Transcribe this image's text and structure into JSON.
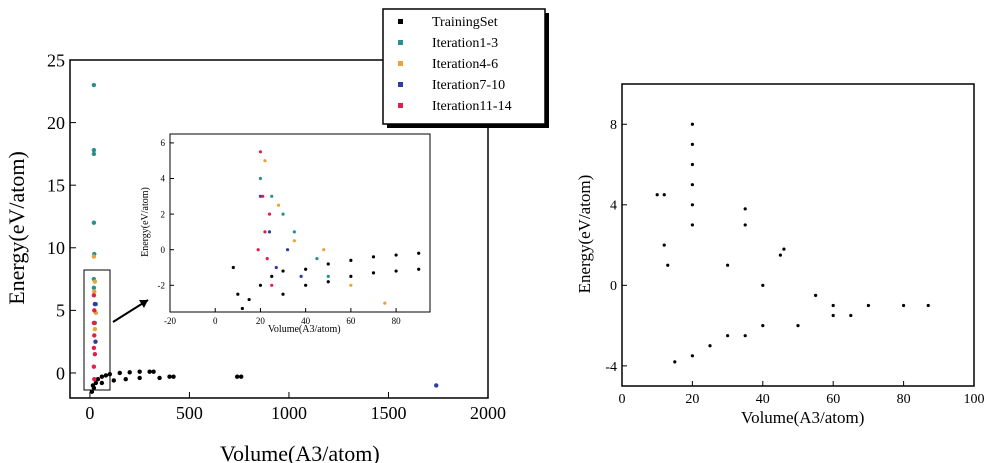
{
  "chart_data": [
    {
      "type": "scatter",
      "xlabel": "Volume(A3/atom)",
      "ylabel": "Energy(eV/atom)",
      "xlim": [
        -100,
        2000
      ],
      "ylim": [
        -2,
        25
      ],
      "xticks": [
        0,
        500,
        1000,
        1500,
        2000
      ],
      "yticks": [
        0,
        5,
        10,
        15,
        20,
        25
      ],
      "legend": {
        "placement": "top-right",
        "entries": [
          {
            "name": "TrainingSet",
            "color": "#000000"
          },
          {
            "name": "Iteration1-3",
            "color": "#2a8f8f"
          },
          {
            "name": "Iteration4-6",
            "color": "#e8a33a"
          },
          {
            "name": "Iteration7-10",
            "color": "#2e3d9e"
          },
          {
            "name": "Iteration11-14",
            "color": "#e0204a"
          }
        ]
      },
      "series": [
        {
          "name": "TrainingSet",
          "points": [
            [
              10,
              -1.5
            ],
            [
              15,
              -1
            ],
            [
              20,
              -1.2
            ],
            [
              30,
              -0.8
            ],
            [
              40,
              -0.5
            ],
            [
              60,
              -0.3
            ],
            [
              80,
              -0.2
            ],
            [
              100,
              -0.1
            ],
            [
              150,
              0.0
            ],
            [
              200,
              0.05
            ],
            [
              250,
              0.1
            ],
            [
              300,
              0.1
            ],
            [
              320,
              0.1
            ],
            [
              60,
              -0.8
            ],
            [
              120,
              -0.6
            ],
            [
              180,
              -0.5
            ],
            [
              250,
              -0.4
            ],
            [
              350,
              -0.4
            ],
            [
              400,
              -0.3
            ],
            [
              420,
              -0.3
            ],
            [
              740,
              -0.3
            ],
            [
              760,
              -0.3
            ]
          ]
        },
        {
          "name": "Iteration1-3",
          "points": [
            [
              20,
              23
            ],
            [
              20,
              17.8
            ],
            [
              20,
              17.5
            ],
            [
              20,
              12
            ],
            [
              22,
              9.5
            ],
            [
              20,
              7.5
            ],
            [
              20,
              6.8
            ],
            [
              30,
              5.5
            ],
            [
              25,
              4
            ]
          ]
        },
        {
          "name": "Iteration4-6",
          "points": [
            [
              20,
              9.3
            ],
            [
              25,
              7.3
            ],
            [
              22,
              6.5
            ],
            [
              30,
              4.8
            ],
            [
              25,
              3.5
            ]
          ]
        },
        {
          "name": "Iteration7-10",
          "points": [
            [
              1740,
              -1
            ],
            [
              25,
              5.5
            ],
            [
              28,
              2.5
            ]
          ]
        },
        {
          "name": "Iteration11-14",
          "points": [
            [
              20,
              6.2
            ],
            [
              22,
              5
            ],
            [
              20,
              4
            ],
            [
              22,
              3
            ],
            [
              20,
              2
            ],
            [
              25,
              1.5
            ],
            [
              20,
              0.5
            ],
            [
              22,
              -0.5
            ]
          ]
        }
      ]
    },
    {
      "type": "scatter",
      "title": "",
      "xlabel": "Volume(A3/atom)",
      "ylabel": "Energy(eV/atom)",
      "xlim": [
        -20,
        95
      ],
      "ylim": [
        -3.5,
        6.5
      ],
      "xticks": [
        -20,
        0,
        20,
        40,
        60,
        80
      ],
      "yticks": [
        -2,
        0,
        2,
        4,
        6
      ],
      "series": [
        {
          "name": "TrainingSet",
          "points": [
            [
              8,
              -1
            ],
            [
              10,
              -2.5
            ],
            [
              12,
              -3.3
            ],
            [
              15,
              -2.8
            ],
            [
              20,
              -2
            ],
            [
              25,
              -1.5
            ],
            [
              30,
              -1.2
            ],
            [
              40,
              -1.1
            ],
            [
              50,
              -0.8
            ],
            [
              60,
              -0.6
            ],
            [
              70,
              -0.4
            ],
            [
              80,
              -0.3
            ],
            [
              90,
              -0.2
            ],
            [
              30,
              -2.5
            ],
            [
              40,
              -2.0
            ],
            [
              50,
              -1.8
            ],
            [
              60,
              -1.5
            ],
            [
              70,
              -1.3
            ],
            [
              80,
              -1.2
            ],
            [
              90,
              -1.1
            ]
          ]
        },
        {
          "name": "Iteration1-3",
          "points": [
            [
              20,
              4
            ],
            [
              25,
              3
            ],
            [
              30,
              2
            ],
            [
              35,
              1
            ],
            [
              45,
              -0.5
            ],
            [
              50,
              -1.5
            ]
          ]
        },
        {
          "name": "Iteration4-6",
          "points": [
            [
              22,
              5
            ],
            [
              28,
              2.5
            ],
            [
              35,
              0.5
            ],
            [
              48,
              0
            ],
            [
              60,
              -2
            ],
            [
              75,
              -3
            ]
          ]
        },
        {
          "name": "Iteration7-10",
          "points": [
            [
              20,
              3
            ],
            [
              24,
              1
            ],
            [
              27,
              -1
            ],
            [
              32,
              0
            ],
            [
              38,
              -1.5
            ]
          ]
        },
        {
          "name": "Iteration11-14",
          "points": [
            [
              20,
              5.5
            ],
            [
              21,
              3
            ],
            [
              22,
              1
            ],
            [
              23,
              -0.5
            ],
            [
              19,
              0
            ],
            [
              24,
              2
            ],
            [
              25,
              -2
            ]
          ]
        }
      ]
    },
    {
      "type": "scatter",
      "xlabel": "Volume(A3/atom)",
      "ylabel": "Energy(eV/atom)",
      "xlim": [
        0,
        100
      ],
      "ylim": [
        -5,
        10
      ],
      "xticks": [
        0,
        20,
        40,
        60,
        80,
        100
      ],
      "yticks": [
        -4,
        0,
        4,
        8
      ],
      "series": [
        {
          "name": "",
          "points": [
            [
              10,
              4.5
            ],
            [
              12,
              4.5
            ],
            [
              20,
              8
            ],
            [
              20,
              7
            ],
            [
              20,
              6
            ],
            [
              20,
              5
            ],
            [
              20,
              4
            ],
            [
              20,
              3
            ],
            [
              35,
              3.8
            ],
            [
              35,
              3
            ],
            [
              46,
              1.8
            ],
            [
              45,
              1.5
            ],
            [
              12,
              2
            ],
            [
              13,
              1
            ],
            [
              30,
              1
            ],
            [
              40,
              0
            ],
            [
              55,
              -0.5
            ],
            [
              60,
              -1
            ],
            [
              70,
              -1
            ],
            [
              80,
              -1
            ],
            [
              87,
              -1
            ],
            [
              15,
              -3.8
            ],
            [
              20,
              -3.5
            ],
            [
              25,
              -3
            ],
            [
              30,
              -2.5
            ],
            [
              35,
              -2.5
            ],
            [
              40,
              -2
            ],
            [
              50,
              -2
            ],
            [
              60,
              -1.5
            ],
            [
              65,
              -1.5
            ]
          ]
        }
      ]
    }
  ],
  "labels": {
    "left_x": [
      {
        "v": 0,
        "t": "0"
      },
      {
        "v": 500,
        "t": "500"
      },
      {
        "v": 1000,
        "t": "1000"
      },
      {
        "v": 1500,
        "t": "1500"
      },
      {
        "v": 2000,
        "t": "2000"
      }
    ],
    "left_y": [
      {
        "v": 0,
        "t": "0"
      },
      {
        "v": 5,
        "t": "5"
      },
      {
        "v": 10,
        "t": "10"
      },
      {
        "v": 15,
        "t": "15"
      },
      {
        "v": 20,
        "t": "20"
      },
      {
        "v": 25,
        "t": "25"
      }
    ],
    "inset_x": [
      {
        "v": -20,
        "t": "-20"
      },
      {
        "v": 0,
        "t": "0"
      },
      {
        "v": 20,
        "t": "20"
      },
      {
        "v": 40,
        "t": "40"
      },
      {
        "v": 60,
        "t": "60"
      },
      {
        "v": 80,
        "t": "80"
      }
    ],
    "inset_y": [
      {
        "v": -2,
        "t": "-2"
      },
      {
        "v": 0,
        "t": "0"
      },
      {
        "v": 2,
        "t": "2"
      },
      {
        "v": 4,
        "t": "4"
      },
      {
        "v": 6,
        "t": "6"
      }
    ],
    "right_x": [
      {
        "v": 0,
        "t": "0"
      },
      {
        "v": 20,
        "t": "20"
      },
      {
        "v": 40,
        "t": "40"
      },
      {
        "v": 60,
        "t": "60"
      },
      {
        "v": 80,
        "t": "80"
      },
      {
        "v": 100,
        "t": "100"
      }
    ],
    "right_y": [
      {
        "v": -4,
        "t": "-4"
      },
      {
        "v": 0,
        "t": "0"
      },
      {
        "v": 4,
        "t": "4"
      },
      {
        "v": 8,
        "t": "8"
      }
    ]
  }
}
